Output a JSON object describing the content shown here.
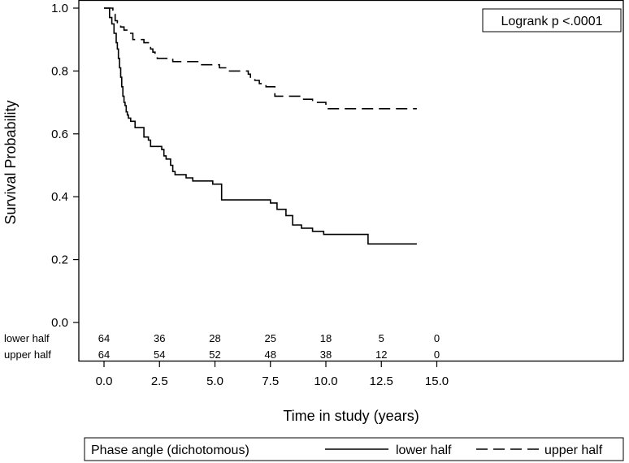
{
  "chart_data": {
    "type": "line",
    "subtype": "kaplan-meier",
    "xlabel": "Time in study (years)",
    "ylabel": "Survival Probability",
    "xlim": [
      0,
      15
    ],
    "ylim": [
      0,
      1
    ],
    "x_ticks": [
      "0.0",
      "2.5",
      "5.0",
      "7.5",
      "10.0",
      "12.5",
      "15.0"
    ],
    "x_tick_values": [
      0,
      2.5,
      5,
      7.5,
      10,
      12.5,
      15
    ],
    "y_ticks": [
      "0.0",
      "0.2",
      "0.4",
      "0.6",
      "0.8",
      "1.0"
    ],
    "y_tick_values": [
      0,
      0.2,
      0.4,
      0.6,
      0.8,
      1.0
    ],
    "grid": false,
    "annotation": "Logrank p <.0001",
    "legend": {
      "placement": "bottom",
      "title": "Phase angle (dichotomous)",
      "entries": [
        {
          "label": "lower half",
          "style": "solid"
        },
        {
          "label": "upper half",
          "style": "dashed"
        }
      ]
    },
    "series": [
      {
        "name": "lower half",
        "style": "solid",
        "x": [
          0,
          0.25,
          0.35,
          0.45,
          0.55,
          0.6,
          0.65,
          0.7,
          0.75,
          0.8,
          0.85,
          0.9,
          0.95,
          1.0,
          1.05,
          1.1,
          1.2,
          1.3,
          1.4,
          1.8,
          2.0,
          2.1,
          2.6,
          2.7,
          2.8,
          3.0,
          3.1,
          3.2,
          3.3,
          3.5,
          3.7,
          3.9,
          4.0,
          4.9,
          5.3,
          5.4,
          7.5,
          7.8,
          8.2,
          8.5,
          8.9,
          9.4,
          9.9,
          11.9,
          14.1
        ],
        "y": [
          1.0,
          0.97,
          0.95,
          0.92,
          0.89,
          0.87,
          0.84,
          0.81,
          0.78,
          0.75,
          0.72,
          0.7,
          0.69,
          0.67,
          0.66,
          0.65,
          0.64,
          0.64,
          0.62,
          0.59,
          0.58,
          0.56,
          0.55,
          0.53,
          0.52,
          0.5,
          0.48,
          0.47,
          0.47,
          0.47,
          0.46,
          0.46,
          0.45,
          0.44,
          0.39,
          0.39,
          0.38,
          0.36,
          0.34,
          0.31,
          0.3,
          0.29,
          0.28,
          0.25,
          0.25
        ]
      },
      {
        "name": "upper half",
        "style": "dashed",
        "x": [
          0,
          0.4,
          0.5,
          0.6,
          0.75,
          0.9,
          1.1,
          1.3,
          1.8,
          2.0,
          2.1,
          2.2,
          2.3,
          2.4,
          2.6,
          3.1,
          3.5,
          4.3,
          4.6,
          5.2,
          5.6,
          6.5,
          6.6,
          6.8,
          7.0,
          7.3,
          7.7,
          8.2,
          8.5,
          8.9,
          9.4,
          9.8,
          10.0,
          14.1
        ],
        "y": [
          1.0,
          0.98,
          0.96,
          0.95,
          0.94,
          0.93,
          0.92,
          0.9,
          0.89,
          0.89,
          0.87,
          0.86,
          0.85,
          0.84,
          0.84,
          0.83,
          0.83,
          0.82,
          0.82,
          0.81,
          0.8,
          0.79,
          0.78,
          0.77,
          0.76,
          0.75,
          0.72,
          0.72,
          0.72,
          0.71,
          0.7,
          0.7,
          0.68,
          0.68
        ]
      }
    ],
    "risk_table": {
      "rows": [
        {
          "label": "lower half",
          "counts": [
            "64",
            "36",
            "28",
            "25",
            "18",
            "5",
            "0"
          ]
        },
        {
          "label": "upper half",
          "counts": [
            "64",
            "54",
            "52",
            "48",
            "38",
            "12",
            "0"
          ]
        }
      ],
      "times": [
        0,
        2.5,
        5,
        7.5,
        10,
        12.5,
        15
      ]
    }
  }
}
